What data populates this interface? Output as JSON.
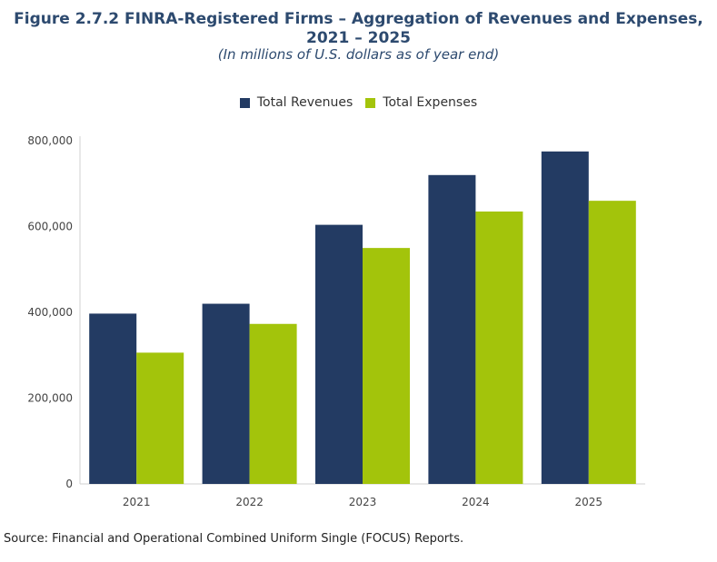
{
  "title_line1": "Figure 2.7.2 FINRA-Registered Firms – Aggregation of Revenues and Expenses,",
  "title_line2": "2021 – 2025",
  "subtitle": "(In millions of U.S. dollars as of year end)",
  "source": "Source: Financial and Operational Combined Uniform Single (FOCUS) Reports.",
  "colors": {
    "revenues": "#233b63",
    "expenses": "#a3c40b"
  },
  "chart_data": {
    "type": "bar",
    "categories": [
      "2021",
      "2022",
      "2023",
      "2024",
      "2025"
    ],
    "series": [
      {
        "name": "Total Revenues",
        "values": [
          397000,
          420000,
          604000,
          720000,
          775000
        ]
      },
      {
        "name": "Total Expenses",
        "values": [
          306000,
          373000,
          550000,
          635000,
          660000
        ]
      }
    ],
    "ylim": [
      0,
      800000
    ],
    "yticks": [
      0,
      200000,
      400000,
      600000,
      800000
    ],
    "ytick_labels": [
      "0",
      "200,000",
      "400,000",
      "600,000",
      "800,000"
    ],
    "legend_position": "top-center",
    "grid": false
  }
}
